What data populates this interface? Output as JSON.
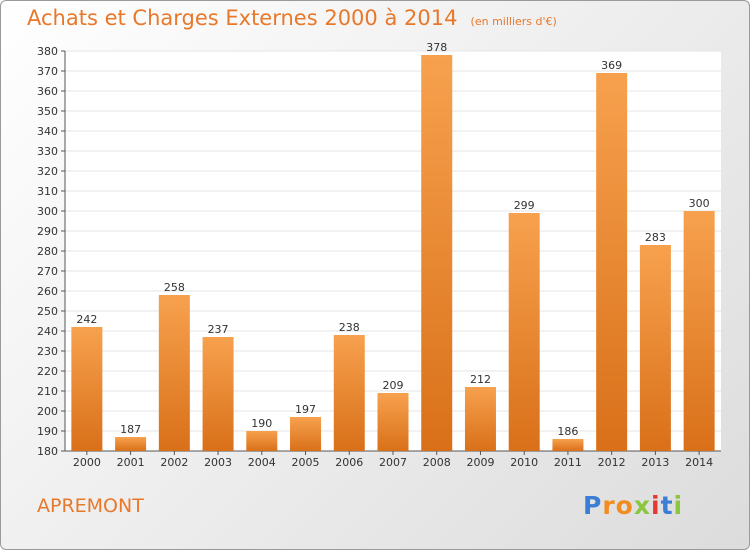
{
  "title": "Achats et Charges Externes 2000 à 2014",
  "unit_note": "(en milliers d'€)",
  "commune": "APREMONT",
  "brand": {
    "name": "Proxiti",
    "letters": [
      {
        "char": "P",
        "color": "#3a7fd5"
      },
      {
        "char": "r",
        "color": "#f28c1e"
      },
      {
        "char": "o",
        "color": "#f28c1e"
      },
      {
        "char": "x",
        "color": "#8cc63f"
      },
      {
        "char": "i",
        "color": "#e53935"
      },
      {
        "char": "t",
        "color": "#3a7fd5"
      },
      {
        "char": "i",
        "color": "#8cc63f"
      }
    ]
  },
  "colors": {
    "accent": "#e8782a",
    "bar_light": "#f7a14e",
    "bar_dark": "#d97019",
    "grid": "#e6e6e6",
    "axis": "#555555"
  },
  "chart_data": {
    "type": "bar",
    "categories": [
      "2000",
      "2001",
      "2002",
      "2003",
      "2004",
      "2005",
      "2006",
      "2007",
      "2008",
      "2009",
      "2010",
      "2011",
      "2012",
      "2013",
      "2014"
    ],
    "values": [
      242,
      187,
      258,
      237,
      190,
      197,
      238,
      209,
      378,
      212,
      299,
      186,
      369,
      283,
      300
    ],
    "ylim": [
      180,
      380
    ],
    "ytick_step": 10,
    "grid": true,
    "data_labels": true,
    "title": "Achats et Charges Externes 2000 à 2014",
    "xlabel": "",
    "ylabel": ""
  }
}
